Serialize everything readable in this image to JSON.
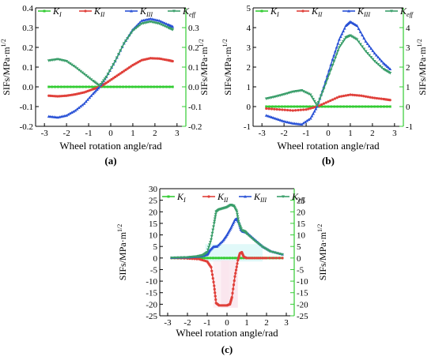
{
  "colors": {
    "K_I": "#33cc33",
    "K_II": "#e0403a",
    "K_III": "#2a52d6",
    "K_eff": "#3a9e6a",
    "right_axis": "#33cc33",
    "band_cyan": "#d9f7f7",
    "band_pink": "#f9e3ec"
  },
  "chart_data": [
    {
      "id": "a",
      "type": "line",
      "caption": "(a)",
      "xlabel": "Wheel rotation angle/rad",
      "ylabel_left": "SIFs/MPa·m^1/2",
      "ylabel_right": "SIFs/MPa·m^1/2",
      "xlim": [
        -3.4,
        3.4
      ],
      "ylim": [
        -0.2,
        0.4
      ],
      "x_ticks": [
        -3,
        -2,
        -1,
        0,
        1,
        2,
        3
      ],
      "y_ticks": [
        -0.2,
        -0.1,
        0.0,
        0.1,
        0.2,
        0.3,
        0.4
      ],
      "y_tick_labels": [
        "-0.2",
        "-0.1",
        "0.0",
        "0.1",
        "0.2",
        "0.3",
        "0.4"
      ],
      "right_ticks": [
        -0.2,
        -0.1,
        0.0,
        0.1,
        0.2,
        0.3
      ],
      "right_tick_labels": [
        "-0.2",
        "-0.1",
        "0.0",
        "0.1",
        "0.2",
        "0.3"
      ],
      "legend": [
        "K_I",
        "K_II",
        "K_III",
        "K_eff"
      ],
      "series": [
        {
          "name": "K_I",
          "x": [
            -2.8,
            2.8
          ],
          "y": [
            0.0,
            0.0
          ]
        },
        {
          "name": "K_II",
          "x": [
            -2.8,
            -2.4,
            -2.0,
            -1.6,
            -1.2,
            -0.8,
            -0.5,
            -0.2,
            0.2,
            0.6,
            1.0,
            1.4,
            1.8,
            2.2,
            2.6,
            2.8
          ],
          "y": [
            -0.045,
            -0.048,
            -0.045,
            -0.038,
            -0.028,
            -0.012,
            0.0,
            0.02,
            0.05,
            0.08,
            0.11,
            0.135,
            0.145,
            0.143,
            0.135,
            0.13
          ]
        },
        {
          "name": "K_III",
          "x": [
            -2.8,
            -2.4,
            -2.0,
            -1.6,
            -1.2,
            -0.8,
            -0.5,
            -0.2,
            0.2,
            0.6,
            1.0,
            1.4,
            1.8,
            2.2,
            2.6,
            2.8
          ],
          "y": [
            -0.15,
            -0.155,
            -0.145,
            -0.12,
            -0.085,
            -0.035,
            0.0,
            0.05,
            0.13,
            0.22,
            0.29,
            0.335,
            0.345,
            0.335,
            0.315,
            0.305
          ]
        },
        {
          "name": "K_eff",
          "x": [
            -2.8,
            -2.4,
            -2.0,
            -1.6,
            -1.2,
            -0.8,
            -0.5,
            -0.2,
            0.2,
            0.6,
            1.0,
            1.4,
            1.8,
            2.2,
            2.6,
            2.8
          ],
          "y": [
            0.133,
            0.14,
            0.13,
            0.1,
            0.065,
            0.03,
            0.005,
            0.05,
            0.13,
            0.22,
            0.285,
            0.32,
            0.33,
            0.32,
            0.3,
            0.29
          ]
        }
      ]
    },
    {
      "id": "b",
      "type": "line",
      "caption": "(b)",
      "xlabel": "Wheel rotation angle/rad",
      "ylabel_left": "SIFs/MPa·m^1/2",
      "ylabel_right": "SIFs/MPa·m^1/2",
      "xlim": [
        -3.4,
        3.4
      ],
      "ylim": [
        -1,
        5
      ],
      "x_ticks": [
        -3,
        -2,
        -1,
        0,
        1,
        2,
        3
      ],
      "y_ticks": [
        -1,
        0,
        1,
        2,
        3,
        4,
        5
      ],
      "y_tick_labels": [
        "-1",
        "0",
        "1",
        "2",
        "3",
        "4",
        "5"
      ],
      "right_ticks": [
        -1,
        0,
        1,
        2,
        3,
        4
      ],
      "right_tick_labels": [
        "-1",
        "0",
        "1",
        "2",
        "3",
        "4"
      ],
      "legend": [
        "K_I",
        "K_II",
        "K_III",
        "K_eff"
      ],
      "series": [
        {
          "name": "K_I",
          "x": [
            -2.8,
            2.8
          ],
          "y": [
            0.0,
            0.0
          ]
        },
        {
          "name": "K_II",
          "x": [
            -2.8,
            -2.2,
            -1.6,
            -1.0,
            -0.5,
            0.0,
            0.5,
            1.0,
            1.5,
            2.0,
            2.5,
            2.8
          ],
          "y": [
            -0.1,
            -0.15,
            -0.2,
            -0.15,
            0.0,
            0.25,
            0.5,
            0.6,
            0.55,
            0.45,
            0.38,
            0.33
          ]
        },
        {
          "name": "K_III",
          "x": [
            -2.8,
            -2.4,
            -2.0,
            -1.6,
            -1.2,
            -0.8,
            -0.5,
            -0.2,
            0.2,
            0.5,
            0.8,
            1.0,
            1.3,
            1.7,
            2.1,
            2.5,
            2.8
          ],
          "y": [
            -0.45,
            -0.6,
            -0.75,
            -0.85,
            -0.9,
            -0.6,
            0.0,
            1.0,
            2.4,
            3.4,
            4.1,
            4.3,
            4.1,
            3.3,
            2.7,
            2.2,
            1.9
          ]
        },
        {
          "name": "K_eff",
          "x": [
            -2.8,
            -2.4,
            -2.0,
            -1.6,
            -1.2,
            -0.8,
            -0.5,
            -0.2,
            0.2,
            0.5,
            0.8,
            1.0,
            1.3,
            1.7,
            2.1,
            2.5,
            2.8
          ],
          "y": [
            0.4,
            0.5,
            0.62,
            0.75,
            0.82,
            0.6,
            0.05,
            0.9,
            2.1,
            3.0,
            3.5,
            3.6,
            3.4,
            2.8,
            2.3,
            1.9,
            1.7
          ]
        }
      ]
    },
    {
      "id": "c",
      "type": "line",
      "caption": "(c)",
      "xlabel": "Wheel rotation angle/rad",
      "ylabel_left": "SIFs/MPa·m^1/2",
      "ylabel_right": "SIFs/MPa·m^1/2",
      "xlim": [
        -3.4,
        3.4
      ],
      "ylim": [
        -25,
        30
      ],
      "x_ticks": [
        -3,
        -2,
        -1,
        0,
        1,
        2,
        3
      ],
      "y_ticks": [
        -25,
        -20,
        -15,
        -10,
        -5,
        0,
        5,
        10,
        15,
        20,
        25,
        30
      ],
      "y_tick_labels": [
        "-25",
        "-20",
        "-15",
        "-10",
        "-5",
        "0",
        "5",
        "10",
        "15",
        "20",
        "25",
        "30"
      ],
      "right_ticks": [
        -25,
        -20,
        -15,
        -10,
        -5,
        0,
        5,
        10,
        15,
        20,
        25
      ],
      "right_tick_labels": [
        "-25",
        "-20",
        "-15",
        "-10",
        "-5",
        "0",
        "5",
        "10",
        "15",
        "20",
        "25"
      ],
      "legend": [
        "K_I",
        "K_II",
        "K_III",
        "K_eff"
      ],
      "series": [
        {
          "name": "K_I",
          "x": [
            -2.8,
            2.8
          ],
          "y": [
            0.0,
            0.0
          ]
        },
        {
          "name": "K_II",
          "x": [
            -2.8,
            -2.0,
            -1.4,
            -1.0,
            -0.8,
            -0.65,
            -0.55,
            -0.4,
            0.0,
            0.15,
            0.25,
            0.4,
            0.55,
            0.65,
            0.75,
            0.85,
            1.0,
            1.5,
            2.0,
            2.8
          ],
          "y": [
            0.0,
            -0.2,
            -0.5,
            -1.5,
            -4.0,
            -12.0,
            -19.5,
            -20.5,
            -20.5,
            -20.0,
            -17.0,
            -8.0,
            -1.0,
            2.0,
            2.5,
            0.5,
            0.0,
            0.0,
            0.0,
            0.0
          ]
        },
        {
          "name": "K_III",
          "x": [
            -2.8,
            -2.0,
            -1.5,
            -1.2,
            -1.0,
            -0.9,
            -0.7,
            -0.5,
            -0.2,
            0.0,
            0.2,
            0.4,
            0.5,
            0.6,
            0.7,
            0.8,
            1.0,
            1.4,
            1.8,
            2.2,
            2.8
          ],
          "y": [
            0.1,
            0.3,
            0.6,
            1.0,
            1.5,
            3.0,
            4.8,
            5.0,
            7.5,
            10.0,
            13.0,
            16.5,
            17.0,
            15.5,
            12.5,
            11.5,
            11.0,
            8.0,
            5.0,
            3.0,
            1.6
          ]
        },
        {
          "name": "K_eff",
          "x": [
            -2.8,
            -2.0,
            -1.5,
            -1.2,
            -1.0,
            -0.8,
            -0.65,
            -0.55,
            -0.4,
            -0.2,
            0.0,
            0.2,
            0.35,
            0.5,
            0.6,
            0.75,
            0.9,
            1.0,
            1.4,
            1.8,
            2.2,
            2.8
          ],
          "y": [
            0.1,
            0.3,
            0.7,
            1.3,
            2.5,
            8.0,
            15.0,
            20.0,
            21.0,
            21.5,
            22.0,
            23.0,
            22.5,
            20.0,
            15.0,
            12.0,
            11.5,
            10.5,
            7.5,
            4.8,
            2.8,
            1.5
          ]
        }
      ]
    }
  ]
}
